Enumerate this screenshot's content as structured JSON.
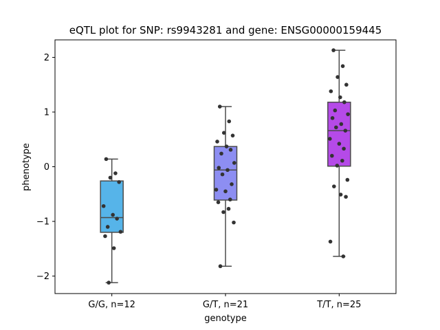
{
  "chart_data": {
    "type": "box",
    "title": "eQTL plot for SNP: rs9943281 and gene: ENSG00000159445",
    "xlabel": "genotype",
    "ylabel": "phenotype",
    "ylim": [
      -2.32,
      2.32
    ],
    "yticks": [
      2,
      1,
      0,
      -1,
      -2
    ],
    "ytick_labels": [
      "2",
      "1",
      "0",
      "−1",
      "−2"
    ],
    "categories": [
      "G/G, n=12",
      "G/T, n=21",
      "T/T, n=25"
    ],
    "boxes": [
      {
        "color": "#56b4e9",
        "q1": -1.2,
        "median": -0.93,
        "q3": -0.26,
        "whisker_low": -2.12,
        "whisker_high": 0.14,
        "points": [
          0.14,
          -0.12,
          -0.2,
          -0.28,
          -0.72,
          -0.88,
          -0.95,
          -1.1,
          -1.19,
          -1.27,
          -1.49,
          -2.12
        ]
      },
      {
        "color": "#8d8ef2",
        "q1": -0.61,
        "median": -0.06,
        "q3": 0.37,
        "whisker_low": -1.82,
        "whisker_high": 1.1,
        "points": [
          1.1,
          0.83,
          0.62,
          0.57,
          0.46,
          0.37,
          0.31,
          0.24,
          0.07,
          -0.02,
          -0.06,
          -0.14,
          -0.32,
          -0.42,
          -0.45,
          -0.6,
          -0.65,
          -0.77,
          -0.83,
          -1.02,
          -1.82
        ]
      },
      {
        "color": "#b54ae8",
        "q1": 0.01,
        "median": 0.66,
        "q3": 1.18,
        "whisker_low": -1.64,
        "whisker_high": 2.13,
        "points": [
          2.13,
          1.84,
          1.64,
          1.5,
          1.38,
          1.27,
          1.18,
          1.03,
          0.96,
          0.89,
          0.78,
          0.72,
          0.66,
          0.51,
          0.42,
          0.33,
          0.2,
          0.11,
          0.02,
          -0.24,
          -0.36,
          -0.51,
          -0.55,
          -1.37,
          -1.64
        ]
      }
    ]
  }
}
